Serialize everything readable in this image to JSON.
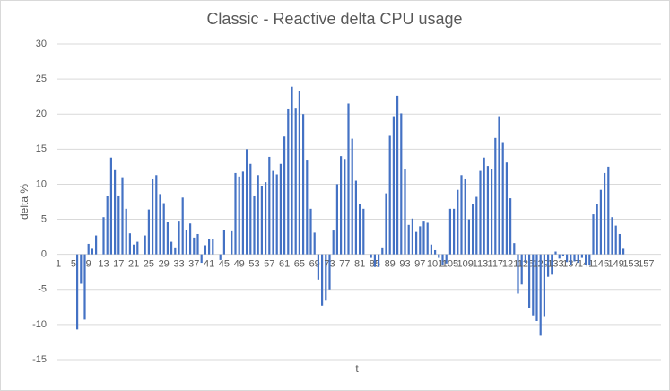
{
  "chart_data": {
    "type": "bar",
    "title": "Classic - Reactive delta CPU usage",
    "x_label": "t",
    "y_label": "delta %",
    "categories": [
      "1",
      null,
      null,
      null,
      "5",
      null,
      null,
      null,
      "9",
      null,
      null,
      null,
      "13",
      null,
      null,
      null,
      "17",
      null,
      null,
      null,
      "21",
      null,
      null,
      null,
      "25",
      null,
      null,
      null,
      "29",
      null,
      null,
      null,
      "33",
      null,
      null,
      null,
      "37",
      null,
      null,
      null,
      "41",
      null,
      null,
      null,
      "45",
      null,
      null,
      null,
      "49",
      null,
      null,
      null,
      "53",
      null,
      null,
      null,
      "57",
      null,
      null,
      null,
      "61",
      null,
      null,
      null,
      "65",
      null,
      null,
      null,
      "69",
      null,
      null,
      null,
      "73",
      null,
      null,
      null,
      "77",
      null,
      null,
      null,
      "81",
      null,
      null,
      null,
      "85",
      null,
      null,
      null,
      "89",
      null,
      null,
      null,
      "93",
      null,
      null,
      null,
      "97",
      null,
      null,
      null,
      "101",
      null,
      null,
      null,
      "105",
      null,
      null,
      null,
      "109",
      null,
      null,
      null,
      "113",
      null,
      null,
      null,
      "117",
      null,
      null,
      null,
      "121",
      null,
      null,
      null,
      "125",
      null,
      null,
      null,
      "129",
      null,
      null,
      null,
      "133",
      null,
      null,
      null,
      "137",
      null,
      null,
      null,
      "141",
      null,
      null,
      null,
      "145",
      null,
      null,
      null,
      "149",
      null,
      null,
      null,
      "153",
      null,
      null,
      null,
      "157"
    ],
    "values": [
      0,
      0,
      0,
      0,
      0,
      -10.7,
      -4.2,
      -9.3,
      1.5,
      0.8,
      2.7,
      0,
      5.3,
      8.3,
      13.8,
      12,
      8.4,
      11,
      6.5,
      3,
      1.4,
      1.8,
      0,
      2.7,
      6.4,
      10.7,
      11.3,
      8.6,
      7.3,
      4.6,
      1.8,
      1,
      4.8,
      8.1,
      3.5,
      4.4,
      2.4,
      2.9,
      -1.2,
      1.3,
      2.2,
      2.2,
      0,
      -0.8,
      3.5,
      0,
      3.3,
      11.6,
      11.1,
      11.8,
      15,
      12.9,
      8.4,
      11.3,
      9.8,
      10.3,
      13.9,
      11.9,
      11.4,
      12.9,
      16.8,
      20.8,
      23.9,
      20.9,
      23.3,
      20,
      13.5,
      6.5,
      3.1,
      -3.6,
      -7.3,
      -6.6,
      -5,
      3.4,
      10,
      14,
      13.6,
      21.5,
      16.5,
      10.5,
      7.2,
      6.5,
      0,
      -0.5,
      -1.8,
      -1.8,
      1,
      8.7,
      16.9,
      19.7,
      22.6,
      20.1,
      12.1,
      4.2,
      5.1,
      3.2,
      4,
      4.8,
      4.5,
      1.4,
      0.6,
      -0.5,
      -1.5,
      -1.3,
      6.5,
      6.5,
      9.2,
      11.3,
      10.7,
      5,
      7.2,
      8.2,
      11.9,
      13.8,
      12.6,
      12.1,
      16.6,
      19.7,
      16,
      13.1,
      8,
      1.6,
      -5.6,
      -4.3,
      -1.2,
      -7.7,
      -8.7,
      -9.5,
      -11.6,
      -8.8,
      -3.2,
      -2.9,
      0.4,
      -0.6,
      -0.3,
      -1.1,
      -1.5,
      -1,
      -1.2,
      -0.5,
      -1.5,
      -1.5,
      5.7,
      7.2,
      9.2,
      11.6,
      12.5,
      5.3,
      4.1,
      2.9,
      0.8,
      0,
      0,
      0,
      0,
      0,
      0
    ],
    "color": "#4472c4",
    "ylim": [
      -15,
      30
    ],
    "yticks": [
      -15,
      -10,
      -5,
      0,
      5,
      10,
      15,
      20,
      25,
      30
    ],
    "grid": true
  }
}
